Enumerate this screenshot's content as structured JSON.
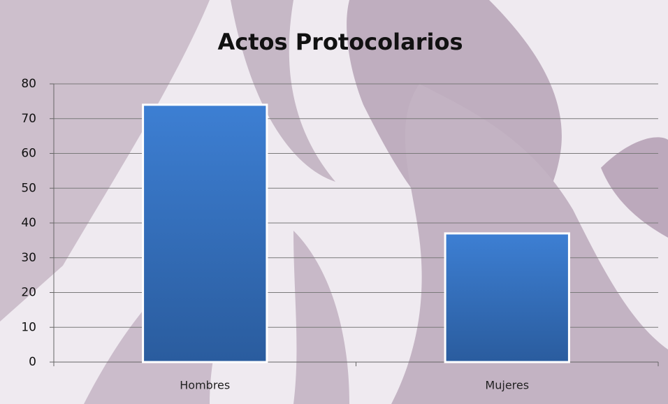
{
  "chart_data": {
    "type": "bar",
    "title": "Actos Protocolarios",
    "categories": [
      "Hombres",
      "Mujeres"
    ],
    "values": [
      74,
      37
    ],
    "color": "#3a78c9",
    "ylim": [
      0,
      80
    ],
    "yticks": [
      0,
      10,
      20,
      30,
      40,
      50,
      60,
      70,
      80
    ],
    "grid": true
  }
}
